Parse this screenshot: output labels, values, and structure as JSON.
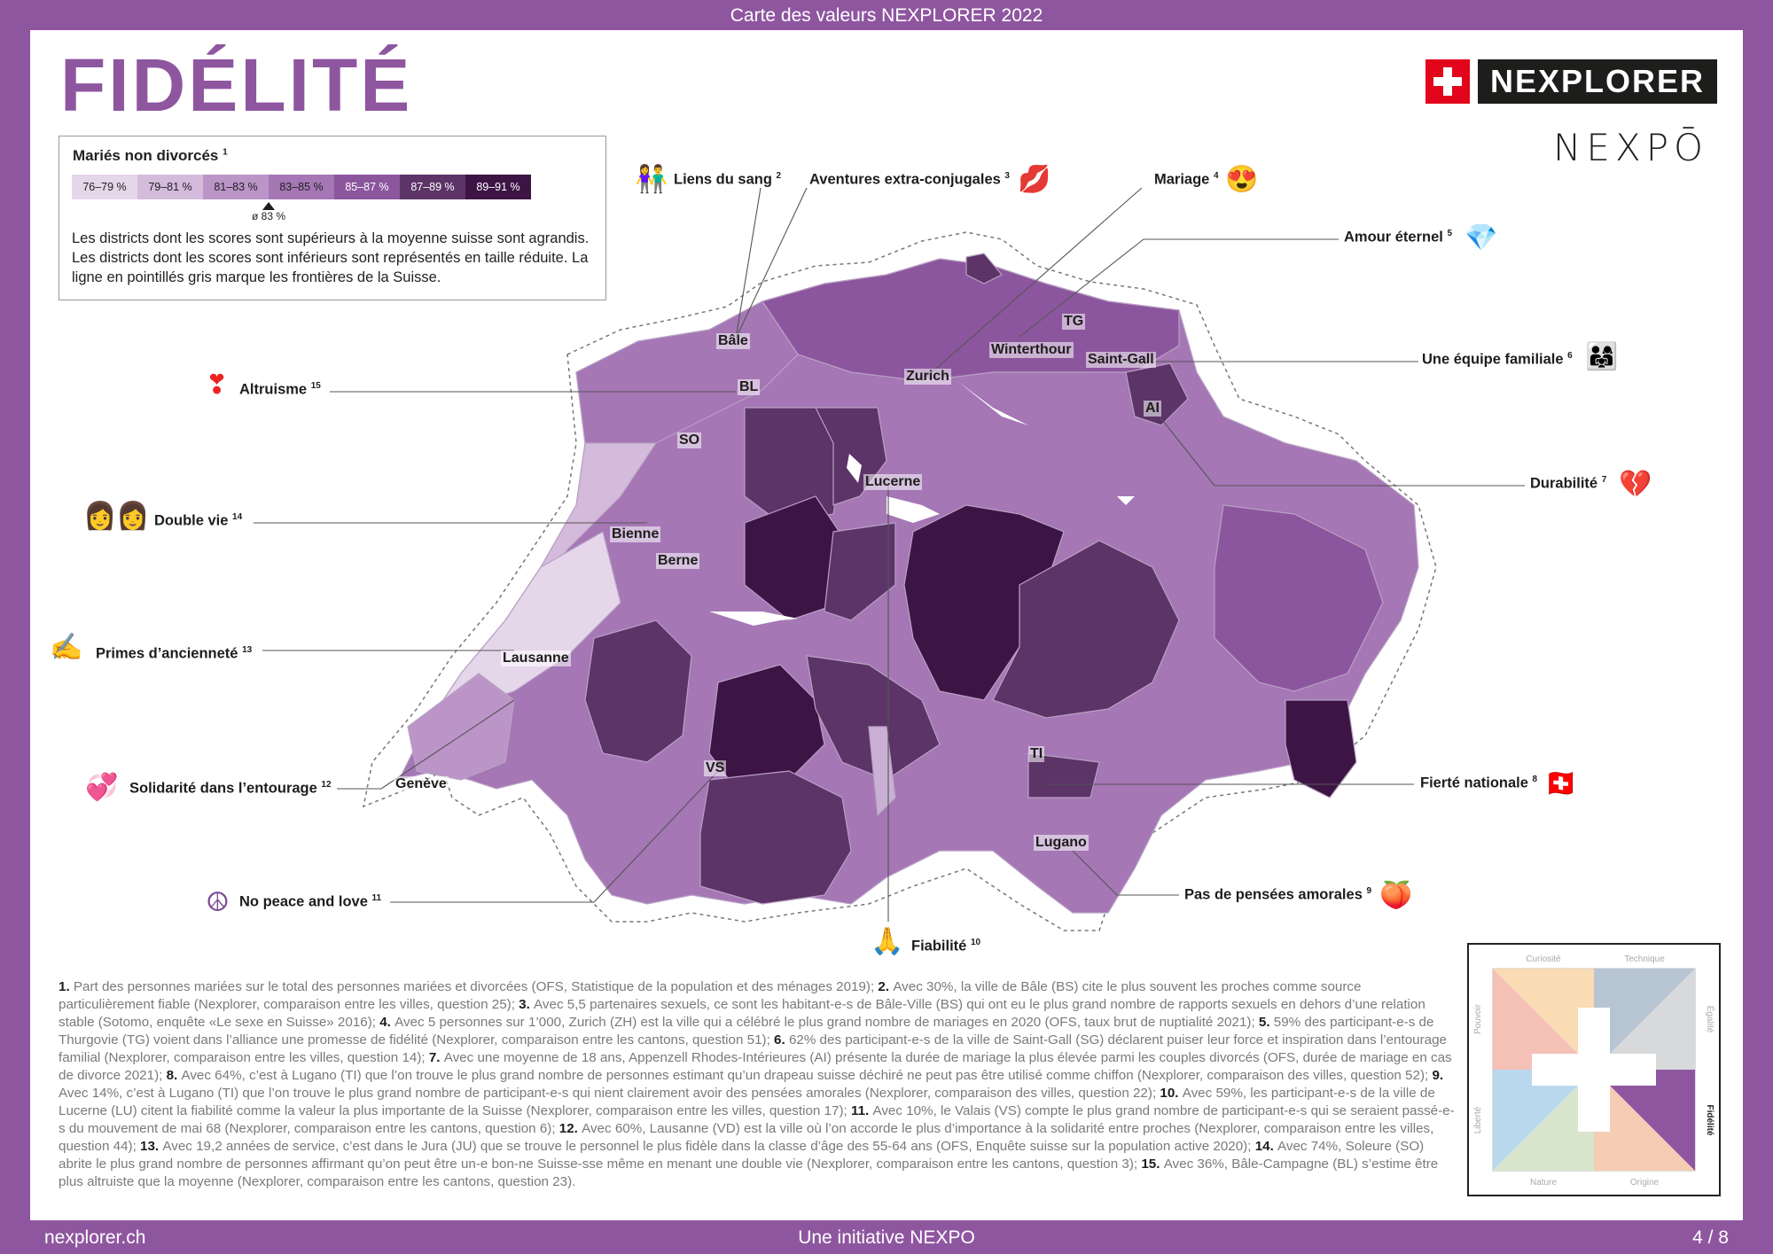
{
  "header": {
    "title": "Carte des valeurs NEXPLORER 2022"
  },
  "page": {
    "title": "FIDÉLITÉ"
  },
  "brand": {
    "logo_text": "NEXPLORER",
    "nexpo": "NEXPŌ"
  },
  "legend": {
    "title": "Mariés non divorcés",
    "note": "1",
    "bins": [
      {
        "label": "76–79 %",
        "color": "#e6d6ea"
      },
      {
        "label": "79–81 %",
        "color": "#d4bbdc"
      },
      {
        "label": "81–83 %",
        "color": "#bb95c8"
      },
      {
        "label": "83–85 %",
        "color": "#a577b5"
      },
      {
        "label": "85–87 %",
        "color": "#8c569e"
      },
      {
        "label": "87–89 %",
        "color": "#5c3468"
      },
      {
        "label": "89–91 %",
        "color": "#3d1545"
      }
    ],
    "average": "ø 83 %",
    "description": "Les districts dont les scores sont supérieurs à la moyenne suisse sont agrandis. Les districts dont les scores sont inférieurs sont représentés en taille réduite. La ligne en pointillés gris marque les frontières de la Suisse."
  },
  "cities": [
    "Bâle",
    "BL",
    "SO",
    "Bienne",
    "Berne",
    "Lausanne",
    "Genève",
    "VS",
    "Lucerne",
    "Zurich",
    "Winterthour",
    "TG",
    "Saint-Gall",
    "AI",
    "TI",
    "Lugano"
  ],
  "annotations": [
    {
      "label": "Liens du sang",
      "num": "2",
      "emoji": "👫"
    },
    {
      "label": "Aventures extra-conjugales",
      "num": "3",
      "emoji": "💋"
    },
    {
      "label": "Mariage",
      "num": "4",
      "emoji": "😍"
    },
    {
      "label": "Amour éternel",
      "num": "5",
      "emoji": "💎"
    },
    {
      "label": "Une équipe familiale",
      "num": "6",
      "emoji": "👨‍👩‍👧"
    },
    {
      "label": "Durabilité",
      "num": "7",
      "emoji": "💔"
    },
    {
      "label": "Fierté nationale",
      "num": "8",
      "emoji": "🇨🇭"
    },
    {
      "label": "Pas de pensées amorales",
      "num": "9",
      "emoji": "🍑"
    },
    {
      "label": "Fiabilité",
      "num": "10",
      "emoji": "🙏"
    },
    {
      "label": "No peace and love",
      "num": "11",
      "emoji": "☮"
    },
    {
      "label": "Solidarité dans l’entourage",
      "num": "12",
      "emoji": "💞"
    },
    {
      "label": "Primes d’ancienneté",
      "num": "13",
      "emoji": "✍"
    },
    {
      "label": "Double vie",
      "num": "14",
      "emoji": "👩👩"
    },
    {
      "label": "Altruisme",
      "num": "15",
      "emoji": "❣"
    }
  ],
  "footnotes": [
    {
      "n": "1.",
      "t": "Part des personnes mariées sur le total des personnes mariées et divorcées (OFS, Statistique de la population et des ménages 2019);"
    },
    {
      "n": "2.",
      "t": "Avec 30%, la ville de Bâle (BS) cite le plus souvent les proches comme source particulièrement fiable (Nexplorer, comparaison entre les villes, question 25);"
    },
    {
      "n": "3.",
      "t": "Avec 5,5 partenaires sexuels, ce sont les habitant-e-s de Bâle-Ville (BS) qui ont eu le plus grand nombre de rapports sexuels en dehors d’une relation stable (Sotomo, enquête «Le sexe en Suisse» 2016);"
    },
    {
      "n": "4.",
      "t": "Avec 5 personnes sur 1’000, Zurich (ZH) est la ville qui a célébré le plus grand nombre de mariages en 2020 (OFS, taux brut de nuptialité 2021);"
    },
    {
      "n": "5.",
      "t": "59% des participant-e-s de Thurgovie (TG) voient dans l’alliance une promesse de fidélité (Nexplorer, comparaison entre les cantons, question 51);"
    },
    {
      "n": "6.",
      "t": "62% des participant-e-s de la ville de Saint-Gall (SG) déclarent puiser leur force et inspiration dans l’entourage familial (Nexplorer, comparaison entre les villes, question 14);"
    },
    {
      "n": "7.",
      "t": "Avec une moyenne de 18 ans, Appenzell Rhodes-Intérieures (AI) présente la durée de mariage la plus élevée parmi les couples divorcés (OFS, durée de mariage en cas de divorce 2021);"
    },
    {
      "n": "8.",
      "t": "Avec 64%, c’est à Lugano (TI) que l’on trouve le plus grand nombre de personnes estimant qu’un drapeau suisse déchiré ne peut pas être utilisé comme chiffon (Nexplorer, comparaison des villes, question 52);"
    },
    {
      "n": "9.",
      "t": "Avec 14%, c’est à Lugano (TI) que l’on trouve le plus grand nombre de participant-e-s qui nient clairement avoir des pensées amorales (Nexplorer, comparaison des villes, question 22);"
    },
    {
      "n": "10.",
      "t": "Avec 59%, les participant-e-s de la ville de Lucerne (LU) citent la fiabilité comme la valeur la plus importante de la Suisse (Nexplorer, comparaison entre les villes, question 17);"
    },
    {
      "n": "11.",
      "t": "Avec 10%, le Valais (VS) compte le plus grand nombre de participant-e-s qui se seraient passé-e-s du mouvement de mai 68 (Nexplorer, comparaison entre les cantons, question 6);"
    },
    {
      "n": "12.",
      "t": "Avec 60%, Lausanne (VD) est la ville où l’on accorde le plus d’importance à la solidarité entre proches (Nexplorer, comparaison entre les villes, question 44);"
    },
    {
      "n": "13.",
      "t": "Avec 19,2 années de service, c’est dans le Jura (JU) que se trouve le personnel le plus fidèle dans la classe d’âge des 55-64 ans (OFS, Enquête suisse sur la population active 2020);"
    },
    {
      "n": "14.",
      "t": "Avec 74%, Soleure (SO) abrite le plus grand nombre de personnes affirmant qu’on peut être un-e bon-ne Suisse-sse même en menant une double vie (Nexplorer, comparaison entre les cantons, question 3);"
    },
    {
      "n": "15.",
      "t": "Avec 36%, Bâle-Campagne (BL) s’estime être plus altruiste que la moyenne (Nexplorer, comparaison entre les cantons, question 23)."
    }
  ],
  "compass": {
    "labels": [
      "Curiosité",
      "Technique",
      "Égalité",
      "Fidélité",
      "Origine",
      "Nature",
      "Liberté",
      "Pouvoir"
    ],
    "colors": {
      "curiosite": "#f9dcb3",
      "technique": "#b7c5d3",
      "egalite": "#d7d9db",
      "fidelite": "#8f56a0",
      "origine": "#f6cdb4",
      "nature": "#d7e6cc",
      "liberte": "#b9d8ee",
      "pouvoir": "#f5c0b5"
    }
  },
  "footer": {
    "left": "nexplorer.ch",
    "center": "Une initiative NEXPO",
    "right": "4 / 8"
  },
  "colors": {
    "accent": "#8f56a0"
  }
}
